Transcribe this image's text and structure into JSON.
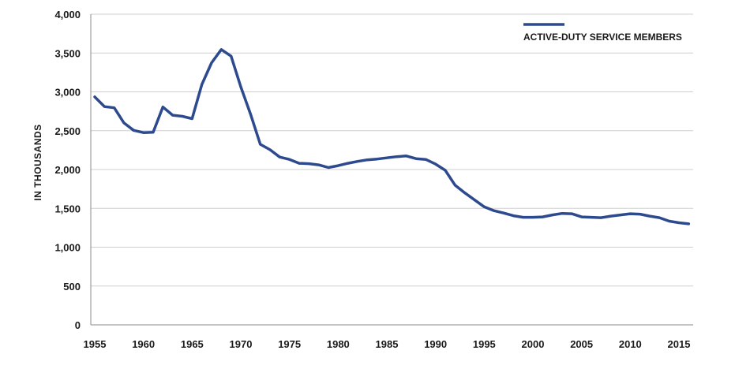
{
  "chart_data": {
    "type": "line",
    "ylabel": "IN THOUSANDS",
    "ylim": [
      0,
      4000
    ],
    "yticks": [
      0,
      500,
      1000,
      1500,
      2000,
      2500,
      3000,
      3500,
      4000
    ],
    "ytick_labels": [
      "0",
      "500",
      "1,000",
      "1,500",
      "2,000",
      "2,500",
      "3,000",
      "3,500",
      "4,000"
    ],
    "xlim": [
      1955,
      2016
    ],
    "xticks": [
      1955,
      1960,
      1965,
      1970,
      1975,
      1980,
      1985,
      1990,
      1995,
      2000,
      2005,
      2010,
      2015
    ],
    "xtick_labels": [
      "1955",
      "1960",
      "1965",
      "1970",
      "1975",
      "1980",
      "1985",
      "1990",
      "1995",
      "2000",
      "2005",
      "2010",
      "2015"
    ],
    "grid": "horizontal",
    "legend_position": "top-right",
    "series_color": "#2e4a8e",
    "series": [
      {
        "name": "ACTIVE-DUTY SERVICE MEMBERS",
        "x": [
          1955,
          1956,
          1957,
          1958,
          1959,
          1960,
          1961,
          1962,
          1963,
          1964,
          1965,
          1966,
          1967,
          1968,
          1969,
          1970,
          1971,
          1972,
          1973,
          1974,
          1975,
          1976,
          1977,
          1978,
          1979,
          1980,
          1981,
          1982,
          1983,
          1984,
          1985,
          1986,
          1987,
          1988,
          1989,
          1990,
          1991,
          1992,
          1993,
          1994,
          1995,
          1996,
          1997,
          1998,
          1999,
          2000,
          2001,
          2002,
          2003,
          2004,
          2005,
          2006,
          2007,
          2008,
          2009,
          2010,
          2011,
          2012,
          2013,
          2014,
          2015,
          2016
        ],
        "values": [
          2935,
          2810,
          2795,
          2600,
          2505,
          2475,
          2480,
          2805,
          2700,
          2685,
          2655,
          3095,
          3375,
          3545,
          3460,
          3065,
          2715,
          2325,
          2255,
          2160,
          2130,
          2080,
          2075,
          2060,
          2025,
          2050,
          2080,
          2105,
          2125,
          2135,
          2150,
          2165,
          2175,
          2140,
          2130,
          2070,
          1990,
          1800,
          1700,
          1610,
          1520,
          1470,
          1440,
          1405,
          1385,
          1385,
          1390,
          1415,
          1435,
          1430,
          1390,
          1385,
          1380,
          1400,
          1415,
          1430,
          1425,
          1400,
          1380,
          1335,
          1315,
          1300
        ]
      }
    ]
  }
}
